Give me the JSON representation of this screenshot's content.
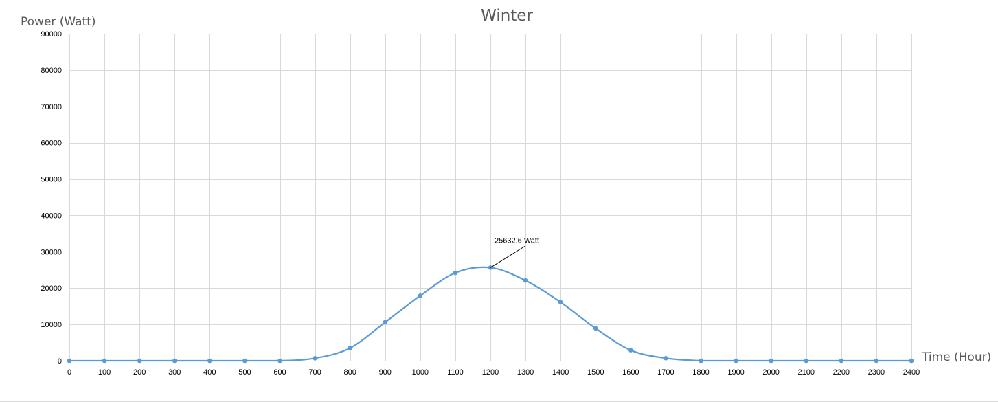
{
  "chart_data": {
    "type": "line",
    "title": "Winter",
    "xlabel": "Time (Hour)",
    "ylabel": "Power (Watt)",
    "xlim": [
      0,
      2400
    ],
    "ylim": [
      0,
      90000
    ],
    "x_ticks": [
      0,
      100,
      200,
      300,
      400,
      500,
      600,
      700,
      800,
      900,
      1000,
      1100,
      1200,
      1300,
      1400,
      1500,
      1600,
      1700,
      1800,
      1900,
      2000,
      2100,
      2200,
      2300,
      2400
    ],
    "y_ticks": [
      0,
      10000,
      20000,
      30000,
      40000,
      50000,
      60000,
      70000,
      80000,
      90000
    ],
    "grid": true,
    "legend": "none",
    "series": [
      {
        "color": "#5b9bd5",
        "smooth": true,
        "x": [
          0,
          100,
          200,
          300,
          400,
          500,
          600,
          700,
          800,
          900,
          1000,
          1100,
          1200,
          1300,
          1400,
          1500,
          1600,
          1700,
          1800,
          1900,
          2000,
          2100,
          2200,
          2300,
          2400
        ],
        "y": [
          0,
          0,
          0,
          0,
          0,
          0,
          0,
          700,
          3500,
          10600,
          17900,
          24200,
          25632.6,
          22100,
          16100,
          8900,
          2900,
          700,
          0,
          0,
          0,
          0,
          0,
          0,
          0
        ]
      }
    ],
    "annotations": [
      {
        "text": "25632.6  Watt",
        "x": 1200,
        "y": 25632.6
      }
    ]
  }
}
